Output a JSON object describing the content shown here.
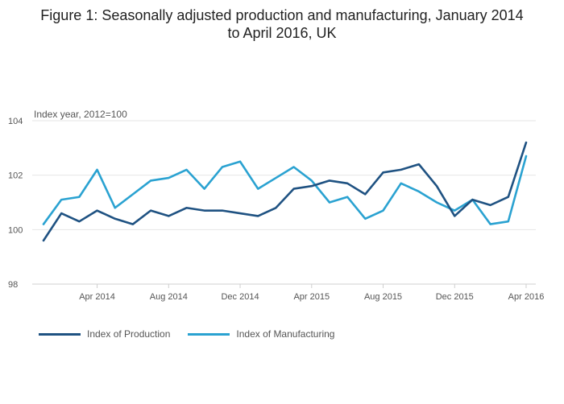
{
  "title_line1": "Figure 1: Seasonally adjusted production and manufacturing, January 2014",
  "title_line2": "to April 2016, UK",
  "chart_data": {
    "type": "line",
    "title": "Figure 1: Seasonally adjusted production and manufacturing, January 2014 to April 2016, UK",
    "ylabel": "Index year, 2012=100",
    "xlabel": "",
    "ylim": [
      98,
      104
    ],
    "yticks": [
      98,
      100,
      102,
      104
    ],
    "x": [
      "Jan 2014",
      "Feb 2014",
      "Mar 2014",
      "Apr 2014",
      "May 2014",
      "Jun 2014",
      "Jul 2014",
      "Aug 2014",
      "Sep 2014",
      "Oct 2014",
      "Nov 2014",
      "Dec 2014",
      "Jan 2015",
      "Feb 2015",
      "Mar 2015",
      "Apr 2015",
      "May 2015",
      "Jun 2015",
      "Jul 2015",
      "Aug 2015",
      "Sep 2015",
      "Oct 2015",
      "Nov 2015",
      "Dec 2015",
      "Jan 2016",
      "Feb 2016",
      "Mar 2016",
      "Apr 2016"
    ],
    "xtick_labels": [
      {
        "index": 3,
        "label": "Apr 2014"
      },
      {
        "index": 7,
        "label": "Aug 2014"
      },
      {
        "index": 11,
        "label": "Dec 2014"
      },
      {
        "index": 15,
        "label": "Apr 2015"
      },
      {
        "index": 19,
        "label": "Aug 2015"
      },
      {
        "index": 23,
        "label": "Dec 2015"
      },
      {
        "index": 27,
        "label": "Apr 2016"
      }
    ],
    "series": [
      {
        "name": "Index of Production",
        "color": "#1f5282",
        "values": [
          99.6,
          100.6,
          100.3,
          100.7,
          100.4,
          100.2,
          100.7,
          100.5,
          100.8,
          100.7,
          100.7,
          100.6,
          100.5,
          100.8,
          101.5,
          101.6,
          101.8,
          101.7,
          101.3,
          102.1,
          102.2,
          102.4,
          101.6,
          100.5,
          101.1,
          100.9,
          101.2,
          103.2
        ]
      },
      {
        "name": "Index of Manufacturing",
        "color": "#2aa2d1",
        "values": [
          100.2,
          101.1,
          101.2,
          102.2,
          100.8,
          101.3,
          101.8,
          101.9,
          102.2,
          101.5,
          102.3,
          102.5,
          101.5,
          101.9,
          102.3,
          101.8,
          101.0,
          101.2,
          100.4,
          100.7,
          101.7,
          101.4,
          101.0,
          100.7,
          101.1,
          100.2,
          100.3,
          102.7
        ]
      }
    ],
    "legend_position": "bottom-left"
  }
}
